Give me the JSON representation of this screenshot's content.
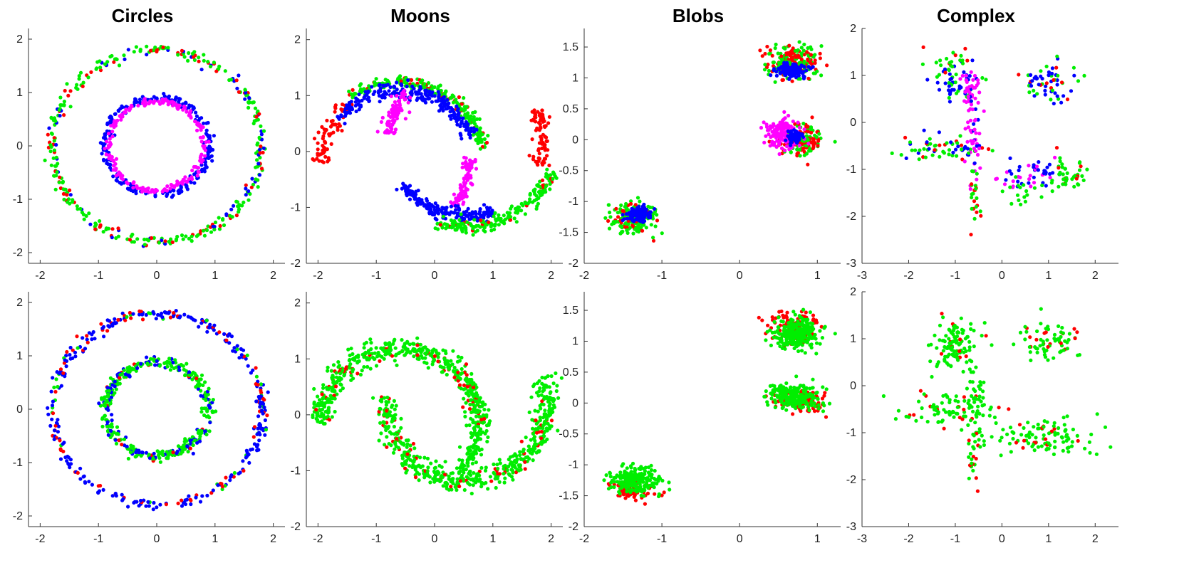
{
  "column_titles": [
    "Circles",
    "Moons",
    "Blobs",
    "Complex"
  ],
  "colors": {
    "red": "#ff0000",
    "green": "#00ee00",
    "blue": "#0000ff",
    "magenta": "#ff00ff",
    "axis": "#333333"
  },
  "chart_data": [
    {
      "id": "circles-top",
      "type": "scatter",
      "title": "Circles",
      "row": 0,
      "col": 0,
      "grid": false,
      "xlim": [
        -2.2,
        2.2
      ],
      "ylim": [
        -2.2,
        2.2
      ],
      "xticks": [
        -2,
        -1,
        0,
        1,
        2
      ],
      "yticks": [
        -2,
        -1,
        0,
        1,
        2
      ],
      "clusters": [
        {
          "shape": "ring",
          "cx": 0,
          "cy": 0,
          "r": 1.8,
          "jitter": 0.05,
          "n": 360,
          "mix": [
            [
              "#00ee00",
              0.62
            ],
            [
              "#ff0000",
              0.22
            ],
            [
              "#0000ff",
              0.16
            ]
          ]
        },
        {
          "shape": "ring",
          "cx": 0,
          "cy": 0,
          "r": 0.9,
          "jitter": 0.04,
          "n": 240,
          "mix": [
            [
              "#0000ff",
              1.0
            ]
          ]
        },
        {
          "shape": "ring",
          "cx": 0,
          "cy": 0,
          "r": 0.83,
          "jitter": 0.03,
          "n": 200,
          "mix": [
            [
              "#ff00ff",
              1.0
            ]
          ]
        }
      ]
    },
    {
      "id": "moons-top",
      "type": "scatter",
      "title": "Moons",
      "row": 0,
      "col": 1,
      "grid": false,
      "xlim": [
        -2.2,
        2.2
      ],
      "ylim": [
        -2.0,
        2.2
      ],
      "xticks": [
        -2,
        -1,
        0,
        1,
        2
      ],
      "yticks": [
        -2,
        -1,
        0,
        1,
        2
      ],
      "clusters": [
        {
          "shape": "arc",
          "cx": -0.6,
          "cy": -0.2,
          "r": 1.35,
          "a0": 180,
          "a1": 125,
          "jitter": 0.09,
          "n": 70,
          "mix": [
            [
              "#ff0000",
              1.0
            ]
          ]
        },
        {
          "shape": "arc",
          "cx": -0.6,
          "cy": -0.2,
          "r": 1.45,
          "a0": 125,
          "a1": 10,
          "jitter": 0.05,
          "n": 230,
          "mix": [
            [
              "#00ee00",
              0.85
            ],
            [
              "#ff0000",
              0.15
            ]
          ]
        },
        {
          "shape": "arc",
          "cx": -0.6,
          "cy": -0.2,
          "r": 1.3,
          "a0": 145,
          "a1": 20,
          "jitter": 0.07,
          "n": 230,
          "mix": [
            [
              "#0000ff",
              1.0
            ]
          ]
        },
        {
          "shape": "arc",
          "cx": -0.6,
          "cy": -0.2,
          "r": 1.2,
          "a0": 5,
          "a1": -40,
          "jitter": 0.06,
          "n": 100,
          "mix": [
            [
              "#ff00ff",
              1.0
            ]
          ]
        },
        {
          "shape": "arc",
          "cx": 0.55,
          "cy": 0.2,
          "r": 1.35,
          "a0": 175,
          "a1": 140,
          "jitter": 0.06,
          "n": 90,
          "mix": [
            [
              "#ff00ff",
              1.0
            ]
          ]
        },
        {
          "shape": "arc",
          "cx": 0.55,
          "cy": 0.2,
          "r": 1.35,
          "a0": 215,
          "a1": 290,
          "jitter": 0.06,
          "n": 200,
          "mix": [
            [
              "#0000ff",
              1.0
            ]
          ]
        },
        {
          "shape": "arc",
          "cx": 0.55,
          "cy": 0.2,
          "r": 1.55,
          "a0": 250,
          "a1": 340,
          "jitter": 0.07,
          "n": 200,
          "mix": [
            [
              "#00ee00",
              0.9
            ],
            [
              "#ff0000",
              0.1
            ]
          ]
        },
        {
          "shape": "arc",
          "cx": 0.55,
          "cy": 0.2,
          "r": 1.3,
          "a0": 340,
          "a1": 385,
          "jitter": 0.07,
          "n": 80,
          "mix": [
            [
              "#ff0000",
              1.0
            ]
          ]
        }
      ]
    },
    {
      "id": "blobs-top",
      "type": "scatter",
      "title": "Blobs",
      "row": 0,
      "col": 2,
      "grid": false,
      "xlim": [
        -2.0,
        1.3
      ],
      "ylim": [
        -2.0,
        1.8
      ],
      "xticks": [
        -2,
        -1,
        0,
        1
      ],
      "yticks": [
        -2,
        -1.5,
        -1,
        -0.5,
        0,
        0.5,
        1,
        1.5
      ],
      "clusters": [
        {
          "shape": "blob",
          "cx": -1.38,
          "cy": -1.28,
          "sx": 0.14,
          "sy": 0.12,
          "n": 200,
          "mix": [
            [
              "#00ee00",
              0.75
            ],
            [
              "#ff0000",
              0.25
            ]
          ]
        },
        {
          "shape": "blob",
          "cx": -1.3,
          "cy": -1.22,
          "sx": 0.08,
          "sy": 0.06,
          "n": 120,
          "mix": [
            [
              "#0000ff",
              1.0
            ]
          ]
        },
        {
          "shape": "blob",
          "cx": 0.68,
          "cy": 1.25,
          "sx": 0.17,
          "sy": 0.13,
          "n": 220,
          "mix": [
            [
              "#ff0000",
              0.45
            ],
            [
              "#00ee00",
              0.55
            ]
          ]
        },
        {
          "shape": "blob",
          "cx": 0.7,
          "cy": 1.12,
          "sx": 0.1,
          "sy": 0.06,
          "n": 120,
          "mix": [
            [
              "#0000ff",
              1.0
            ]
          ]
        },
        {
          "shape": "blob",
          "cx": 0.82,
          "cy": 0.0,
          "sx": 0.14,
          "sy": 0.12,
          "n": 150,
          "mix": [
            [
              "#ff0000",
              0.55
            ],
            [
              "#00ee00",
              0.45
            ]
          ]
        },
        {
          "shape": "blob",
          "cx": 0.55,
          "cy": 0.1,
          "sx": 0.12,
          "sy": 0.12,
          "n": 150,
          "mix": [
            [
              "#ff00ff",
              1.0
            ]
          ]
        },
        {
          "shape": "blob",
          "cx": 0.7,
          "cy": 0.05,
          "sx": 0.05,
          "sy": 0.05,
          "n": 80,
          "mix": [
            [
              "#0000ff",
              1.0
            ]
          ]
        }
      ]
    },
    {
      "id": "complex-top",
      "type": "scatter",
      "title": "Complex",
      "row": 0,
      "col": 3,
      "grid": false,
      "xlim": [
        -3.0,
        2.5
      ],
      "ylim": [
        -3.0,
        2.0
      ],
      "xticks": [
        -3,
        -2,
        -1,
        0,
        1,
        2
      ],
      "yticks": [
        -3,
        -2,
        -1,
        0,
        1,
        2
      ],
      "clusters": [
        {
          "shape": "blob",
          "cx": -1.0,
          "cy": 0.85,
          "sx": 0.25,
          "sy": 0.25,
          "n": 60,
          "mix": [
            [
              "#0000ff",
              0.55
            ],
            [
              "#00ee00",
              0.45
            ]
          ]
        },
        {
          "shape": "blob",
          "cx": -0.7,
          "cy": 0.75,
          "sx": 0.15,
          "sy": 0.2,
          "n": 30,
          "mix": [
            [
              "#ff00ff",
              1.0
            ]
          ]
        },
        {
          "shape": "blob",
          "cx": -1.1,
          "cy": 1.3,
          "sx": 0.3,
          "sy": 0.15,
          "n": 20,
          "mix": [
            [
              "#ff0000",
              0.5
            ],
            [
              "#00ee00",
              0.5
            ]
          ]
        },
        {
          "shape": "blob",
          "cx": 1.0,
          "cy": 0.9,
          "sx": 0.3,
          "sy": 0.2,
          "n": 60,
          "mix": [
            [
              "#0000ff",
              0.55
            ],
            [
              "#00ee00",
              0.3
            ],
            [
              "#ff0000",
              0.15
            ]
          ]
        },
        {
          "shape": "blob",
          "cx": -1.2,
          "cy": -0.55,
          "sx": 0.5,
          "sy": 0.15,
          "n": 60,
          "mix": [
            [
              "#00ee00",
              0.55
            ],
            [
              "#0000ff",
              0.25
            ],
            [
              "#ff0000",
              0.2
            ]
          ]
        },
        {
          "shape": "blob",
          "cx": -0.6,
          "cy": -0.3,
          "sx": 0.1,
          "sy": 0.45,
          "n": 50,
          "mix": [
            [
              "#ff00ff",
              0.75
            ],
            [
              "#0000ff",
              0.25
            ]
          ]
        },
        {
          "shape": "blob",
          "cx": -0.6,
          "cy": -1.5,
          "sx": 0.07,
          "sy": 0.35,
          "n": 25,
          "mix": [
            [
              "#00ee00",
              0.55
            ],
            [
              "#ff0000",
              0.45
            ]
          ]
        },
        {
          "shape": "blob",
          "cx": 0.7,
          "cy": -1.1,
          "sx": 0.35,
          "sy": 0.15,
          "n": 50,
          "mix": [
            [
              "#0000ff",
              0.6
            ],
            [
              "#ff00ff",
              0.4
            ]
          ]
        },
        {
          "shape": "blob",
          "cx": 1.4,
          "cy": -1.1,
          "sx": 0.2,
          "sy": 0.2,
          "n": 45,
          "mix": [
            [
              "#00ee00",
              0.85
            ],
            [
              "#ff0000",
              0.15
            ]
          ]
        },
        {
          "shape": "blob",
          "cx": 0.4,
          "cy": -1.45,
          "sx": 0.2,
          "sy": 0.15,
          "n": 15,
          "mix": [
            [
              "#00ee00",
              1.0
            ]
          ]
        }
      ]
    },
    {
      "id": "circles-bottom",
      "type": "scatter",
      "title": "",
      "row": 1,
      "col": 0,
      "grid": false,
      "xlim": [
        -2.2,
        2.2
      ],
      "ylim": [
        -2.2,
        2.2
      ],
      "xticks": [
        -2,
        -1,
        0,
        1,
        2
      ],
      "yticks": [
        -2,
        -1,
        0,
        1,
        2
      ],
      "clusters": [
        {
          "shape": "ring",
          "cx": 0,
          "cy": 0,
          "r": 1.8,
          "jitter": 0.05,
          "n": 360,
          "mix": [
            [
              "#0000ff",
              0.7
            ],
            [
              "#ff0000",
              0.22
            ],
            [
              "#00ee00",
              0.08
            ]
          ]
        },
        {
          "shape": "ring",
          "cx": 0,
          "cy": 0,
          "r": 0.88,
          "jitter": 0.05,
          "n": 420,
          "mix": [
            [
              "#00ee00",
              0.65
            ],
            [
              "#0000ff",
              0.3
            ],
            [
              "#ff0000",
              0.05
            ]
          ]
        }
      ]
    },
    {
      "id": "moons-bottom",
      "type": "scatter",
      "title": "",
      "row": 1,
      "col": 1,
      "grid": false,
      "xlim": [
        -2.2,
        2.2
      ],
      "ylim": [
        -2.0,
        2.2
      ],
      "xticks": [
        -2,
        -1,
        0,
        1,
        2
      ],
      "yticks": [
        -2,
        -1,
        0,
        1,
        2
      ],
      "clusters": [
        {
          "shape": "arc",
          "cx": -0.6,
          "cy": -0.2,
          "r": 1.38,
          "a0": 180,
          "a1": 0,
          "jitter": 0.1,
          "n": 520,
          "mix": [
            [
              "#00ee00",
              0.88
            ],
            [
              "#ff0000",
              0.12
            ]
          ]
        },
        {
          "shape": "arc",
          "cx": -0.6,
          "cy": -0.2,
          "r": 1.35,
          "a0": 0,
          "a1": -40,
          "jitter": 0.07,
          "n": 90,
          "mix": [
            [
              "#00ee00",
              1.0
            ]
          ]
        },
        {
          "shape": "arc",
          "cx": 0.55,
          "cy": 0.2,
          "r": 1.38,
          "a0": 175,
          "a1": 380,
          "jitter": 0.1,
          "n": 520,
          "mix": [
            [
              "#00ee00",
              0.88
            ],
            [
              "#ff0000",
              0.12
            ]
          ]
        }
      ]
    },
    {
      "id": "blobs-bottom",
      "type": "scatter",
      "title": "",
      "row": 1,
      "col": 2,
      "grid": false,
      "xlim": [
        -2.0,
        1.3
      ],
      "ylim": [
        -2.0,
        1.8
      ],
      "xticks": [
        -2,
        -1,
        0,
        1
      ],
      "yticks": [
        -2,
        -1.5,
        -1,
        -0.5,
        0,
        0.5,
        1,
        1.5
      ],
      "clusters": [
        {
          "shape": "blob",
          "cx": -1.38,
          "cy": -1.42,
          "sx": 0.14,
          "sy": 0.08,
          "n": 70,
          "mix": [
            [
              "#ff0000",
              1.0
            ]
          ]
        },
        {
          "shape": "blob",
          "cx": -1.35,
          "cy": -1.25,
          "sx": 0.15,
          "sy": 0.1,
          "n": 250,
          "mix": [
            [
              "#00ee00",
              1.0
            ]
          ]
        },
        {
          "shape": "blob",
          "cx": 0.72,
          "cy": 1.22,
          "sx": 0.17,
          "sy": 0.12,
          "n": 120,
          "mix": [
            [
              "#ff0000",
              1.0
            ]
          ]
        },
        {
          "shape": "blob",
          "cx": 0.72,
          "cy": 1.12,
          "sx": 0.14,
          "sy": 0.12,
          "n": 260,
          "mix": [
            [
              "#00ee00",
              1.0
            ]
          ]
        },
        {
          "shape": "blob",
          "cx": 0.78,
          "cy": 0.05,
          "sx": 0.15,
          "sy": 0.1,
          "n": 100,
          "mix": [
            [
              "#ff0000",
              1.0
            ]
          ]
        },
        {
          "shape": "blob",
          "cx": 0.68,
          "cy": 0.12,
          "sx": 0.15,
          "sy": 0.1,
          "n": 240,
          "mix": [
            [
              "#00ee00",
              1.0
            ]
          ]
        }
      ]
    },
    {
      "id": "complex-bottom",
      "type": "scatter",
      "title": "",
      "row": 1,
      "col": 3,
      "grid": false,
      "xlim": [
        -3.0,
        2.5
      ],
      "ylim": [
        -3.0,
        2.0
      ],
      "xticks": [
        -3,
        -2,
        -1,
        0,
        1,
        2
      ],
      "yticks": [
        -3,
        -2,
        -1,
        0,
        1,
        2
      ],
      "clusters": [
        {
          "shape": "blob",
          "cx": -0.95,
          "cy": 0.9,
          "sx": 0.25,
          "sy": 0.3,
          "n": 110,
          "mix": [
            [
              "#00ee00",
              0.92
            ],
            [
              "#ff0000",
              0.08
            ]
          ]
        },
        {
          "shape": "blob",
          "cx": 1.0,
          "cy": 0.95,
          "sx": 0.3,
          "sy": 0.2,
          "n": 70,
          "mix": [
            [
              "#00ee00",
              0.8
            ],
            [
              "#ff0000",
              0.2
            ]
          ]
        },
        {
          "shape": "blob",
          "cx": -1.1,
          "cy": -0.55,
          "sx": 0.5,
          "sy": 0.2,
          "n": 90,
          "mix": [
            [
              "#00ee00",
              0.85
            ],
            [
              "#ff0000",
              0.15
            ]
          ]
        },
        {
          "shape": "blob",
          "cx": -0.6,
          "cy": -0.1,
          "sx": 0.1,
          "sy": 0.35,
          "n": 30,
          "mix": [
            [
              "#00ee00",
              1.0
            ]
          ]
        },
        {
          "shape": "blob",
          "cx": -0.6,
          "cy": -1.5,
          "sx": 0.07,
          "sy": 0.35,
          "n": 25,
          "mix": [
            [
              "#00ee00",
              0.6
            ],
            [
              "#ff0000",
              0.4
            ]
          ]
        },
        {
          "shape": "blob",
          "cx": 0.9,
          "cy": -1.1,
          "sx": 0.5,
          "sy": 0.2,
          "n": 110,
          "mix": [
            [
              "#00ee00",
              0.9
            ],
            [
              "#ff0000",
              0.1
            ]
          ]
        }
      ]
    }
  ]
}
